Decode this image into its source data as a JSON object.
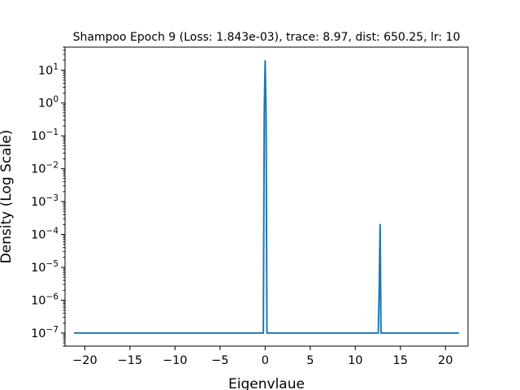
{
  "chart_data": {
    "type": "line",
    "title": "Shampoo Epoch 9 (Loss: 1.843e-03), trace: 8.97, dist: 650.25, lr: 10",
    "xlabel": "Eigenvlaue",
    "ylabel": "Density (Log Scale)",
    "xlim": [
      -22.2,
      22.5
    ],
    "ylim": [
      4e-08,
      50
    ],
    "yscale": "log",
    "grid": false,
    "x_ticks": [
      -20,
      -15,
      -10,
      -5,
      0,
      5,
      10,
      15,
      20
    ],
    "x_tick_labels": [
      "−20",
      "−15",
      "−10",
      "−5",
      "0",
      "5",
      "10",
      "15",
      "20"
    ],
    "y_ticks": [
      {
        "value": 1e-07,
        "base": "10",
        "exp": "−7"
      },
      {
        "value": 1e-06,
        "base": "10",
        "exp": "−6"
      },
      {
        "value": 1e-05,
        "base": "10",
        "exp": "−5"
      },
      {
        "value": 0.0001,
        "base": "10",
        "exp": "−4"
      },
      {
        "value": 0.001,
        "base": "10",
        "exp": "−3"
      },
      {
        "value": 0.01,
        "base": "10",
        "exp": "−2"
      },
      {
        "value": 0.1,
        "base": "10",
        "exp": "−1"
      },
      {
        "value": 1,
        "base": "10",
        "exp": "0"
      },
      {
        "value": 10,
        "base": "10",
        "exp": "1"
      }
    ],
    "series": [
      {
        "color": "#1f77b4",
        "x": [
          -21.2,
          -0.2,
          -0.1,
          0.0,
          0.1,
          0.2,
          12.55,
          12.65,
          12.75,
          12.85,
          21.5
        ],
        "y": [
          1e-07,
          1e-07,
          0.5,
          19.0,
          0.5,
          1e-07,
          1e-07,
          2e-06,
          0.0002,
          1e-07,
          1e-07
        ]
      }
    ]
  }
}
